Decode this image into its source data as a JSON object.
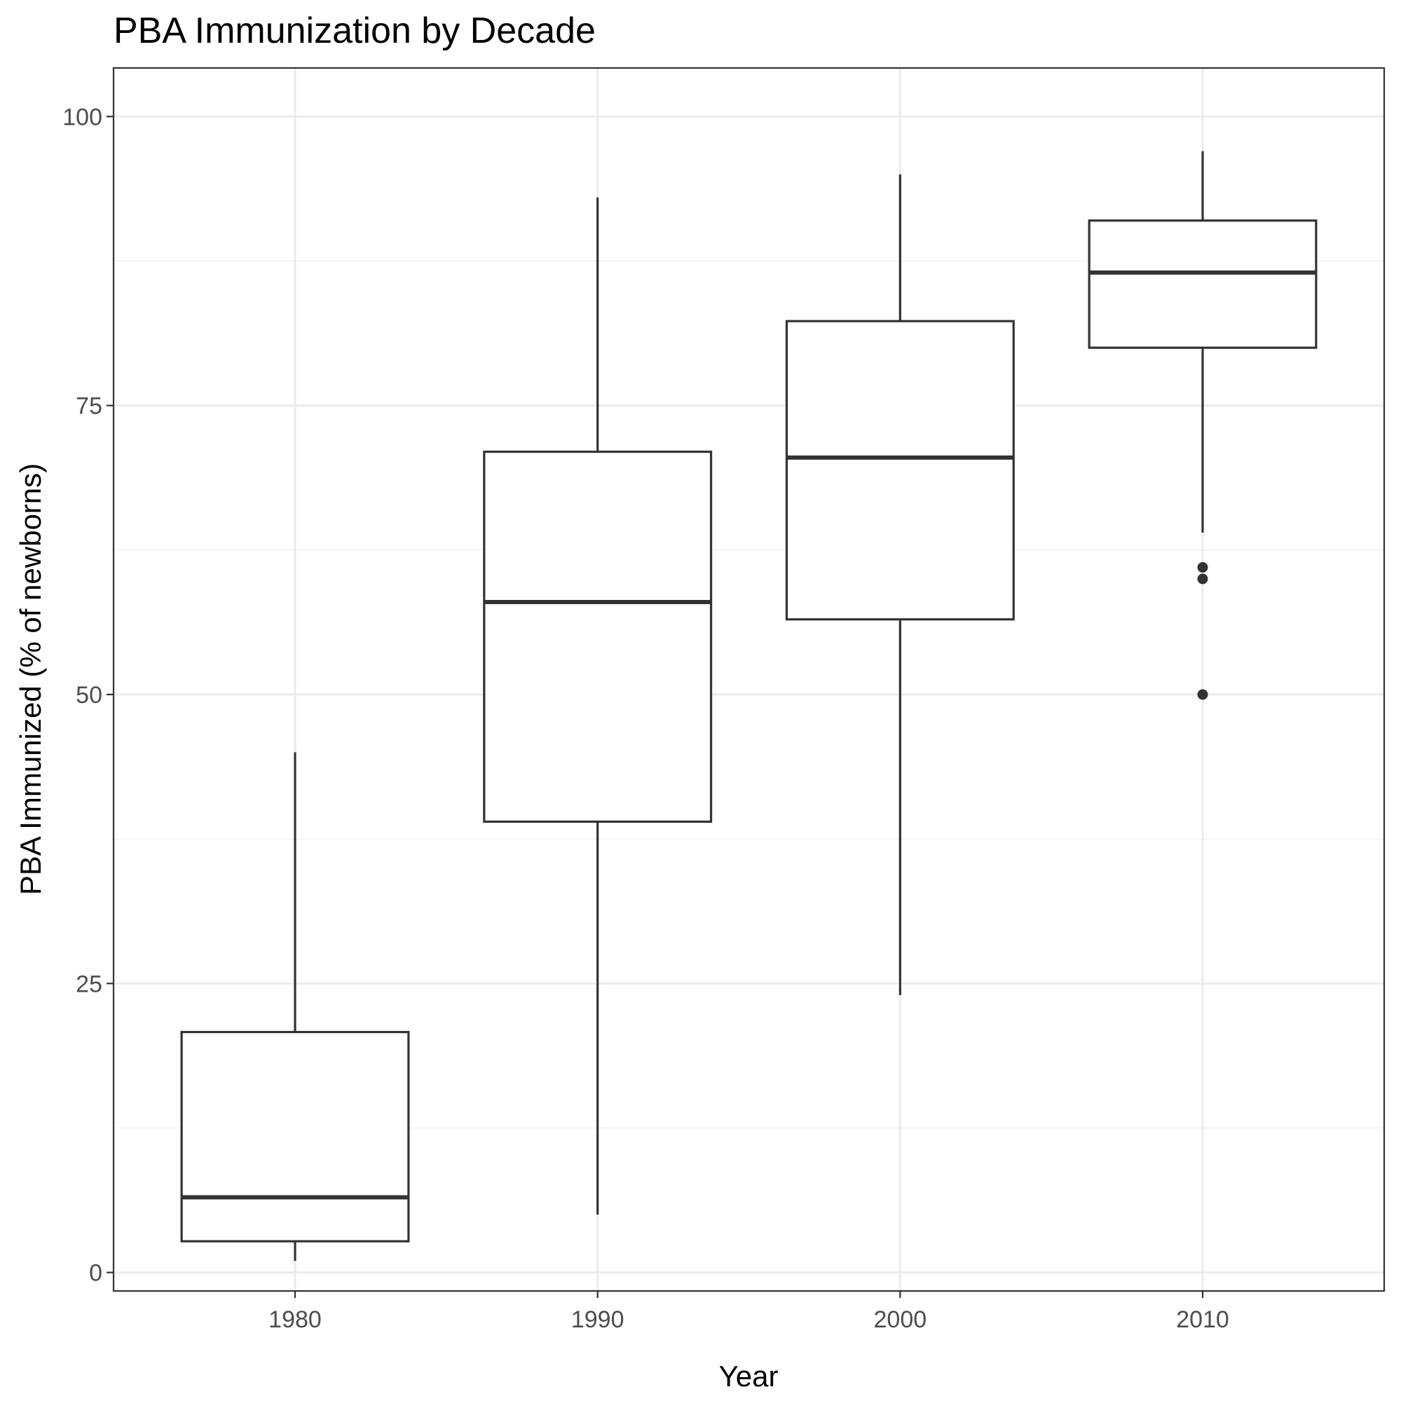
{
  "chart_data": {
    "type": "boxplot",
    "title": "PBA Immunization by Decade",
    "xlabel": "Year",
    "ylabel": "PBA Immunized (% of newborns)",
    "categories": [
      "1980",
      "1990",
      "2000",
      "2010"
    ],
    "ylim": [
      -1.6,
      104.2
    ],
    "yticks": [
      0,
      25,
      50,
      75,
      100
    ],
    "grid": true,
    "boxes": [
      {
        "category": "1980",
        "whisker_low": 1,
        "q1": 2.7,
        "median": 6.5,
        "q3": 20.8,
        "whisker_high": 45,
        "outliers": []
      },
      {
        "category": "1990",
        "whisker_low": 5,
        "q1": 39,
        "median": 58,
        "q3": 71,
        "whisker_high": 93,
        "outliers": []
      },
      {
        "category": "2000",
        "whisker_low": 24,
        "q1": 56.5,
        "median": 70.5,
        "q3": 82.3,
        "whisker_high": 95,
        "outliers": []
      },
      {
        "category": "2010",
        "whisker_low": 64,
        "q1": 80,
        "median": 86.5,
        "q3": 91,
        "whisker_high": 97,
        "outliers": [
          61,
          60,
          50
        ]
      }
    ]
  },
  "colors": {
    "background": "#ffffff",
    "grid_major": "#ebebeb",
    "grid_minor": "#f2f2f2",
    "box_line": "#333333",
    "panel_border": "#333333",
    "tick_text": "#4d4d4d"
  }
}
